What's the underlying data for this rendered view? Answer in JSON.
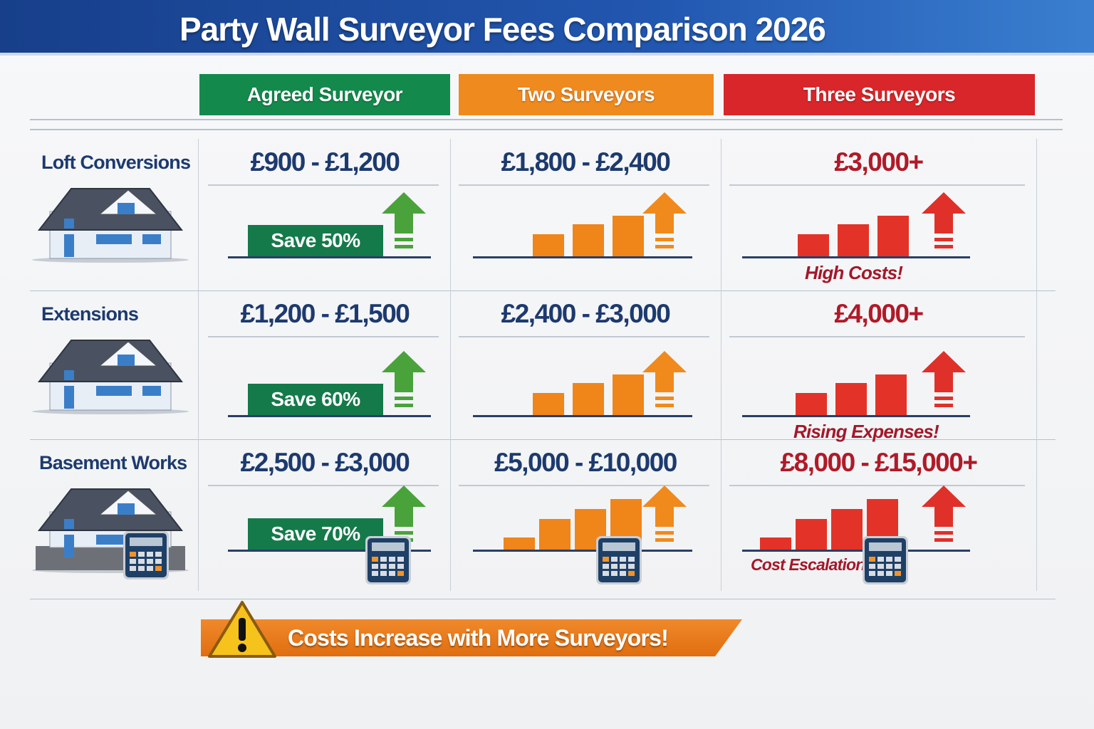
{
  "title": "Party Wall Surveyor Fees Comparison 2026",
  "columns": [
    {
      "label": "Agreed Surveyor",
      "color": "#138a4c"
    },
    {
      "label": "Two Surveyors",
      "color": "#ef8a1f"
    },
    {
      "label": "Three Surveyors",
      "color": "#d8262a"
    }
  ],
  "rows": [
    {
      "label": "Loft Conversions",
      "cells": [
        {
          "price": "£900 - £1,200",
          "badge": "Save 50%"
        },
        {
          "price": "£1,800 - £2,400"
        },
        {
          "price": "£3,000+",
          "note": "High Costs!"
        }
      ]
    },
    {
      "label": "Extensions",
      "cells": [
        {
          "price": "£1,200 - £1,500",
          "badge": "Save 60%"
        },
        {
          "price": "£2,400 - £3,000"
        },
        {
          "price": "£4,000+",
          "note": "Rising Expenses!"
        }
      ]
    },
    {
      "label": "Basement Works",
      "cells": [
        {
          "price": "£2,500 - £3,000",
          "badge": "Save 70%"
        },
        {
          "price": "£5,000 - £10,000"
        },
        {
          "price": "£8,000 - £15,000+",
          "note": "Cost Escalation!"
        }
      ]
    }
  ],
  "footer": "Costs Increase with More Surveyors!",
  "colors": {
    "price_dark": "#1d3a6e",
    "price_red": "#b01a28",
    "arrow_green": "#4aa33a",
    "arrow_orange": "#f08a1c",
    "arrow_red": "#e0302a"
  },
  "icons": [
    "house-icon",
    "calculator-icon",
    "arrow-up-icon",
    "warning-icon"
  ]
}
